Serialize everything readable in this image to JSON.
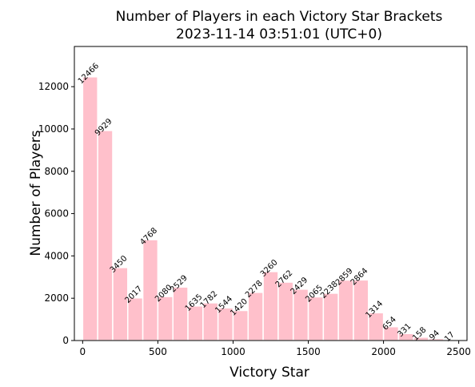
{
  "chart_data": {
    "type": "bar",
    "title_line1": "Number of Players in each Victory Star Brackets",
    "title_line2": "2023-11-14 03:51:01 (UTC+0)",
    "xlabel": "Victory Star",
    "ylabel": "Number of Players",
    "bin_width": 100,
    "bins": [
      {
        "start": 0,
        "value": 12466
      },
      {
        "start": 100,
        "value": 9929
      },
      {
        "start": 200,
        "value": 3450
      },
      {
        "start": 300,
        "value": 2017
      },
      {
        "start": 400,
        "value": 4768
      },
      {
        "start": 500,
        "value": 2080
      },
      {
        "start": 600,
        "value": 2529
      },
      {
        "start": 700,
        "value": 1635
      },
      {
        "start": 800,
        "value": 1782
      },
      {
        "start": 900,
        "value": 1544
      },
      {
        "start": 1000,
        "value": 1420
      },
      {
        "start": 1100,
        "value": 2278
      },
      {
        "start": 1200,
        "value": 3260
      },
      {
        "start": 1300,
        "value": 2762
      },
      {
        "start": 1400,
        "value": 2429
      },
      {
        "start": 1500,
        "value": 2065
      },
      {
        "start": 1600,
        "value": 2238
      },
      {
        "start": 1700,
        "value": 2859
      },
      {
        "start": 1800,
        "value": 2864
      },
      {
        "start": 1900,
        "value": 1314
      },
      {
        "start": 2000,
        "value": 654
      },
      {
        "start": 2100,
        "value": 331
      },
      {
        "start": 2200,
        "value": 158
      },
      {
        "start": 2300,
        "value": 94
      },
      {
        "start": 2400,
        "value": 17
      }
    ],
    "xlim": [
      -55,
      2555
    ],
    "ylim": [
      0,
      13900
    ],
    "xticks": [
      0,
      500,
      1000,
      1500,
      2000,
      2500
    ],
    "yticks": [
      0,
      2000,
      4000,
      6000,
      8000,
      10000,
      12000
    ],
    "bar_color": "#ffc0cb",
    "edge_color": "#ffffff",
    "grid": false,
    "legend": "none"
  }
}
